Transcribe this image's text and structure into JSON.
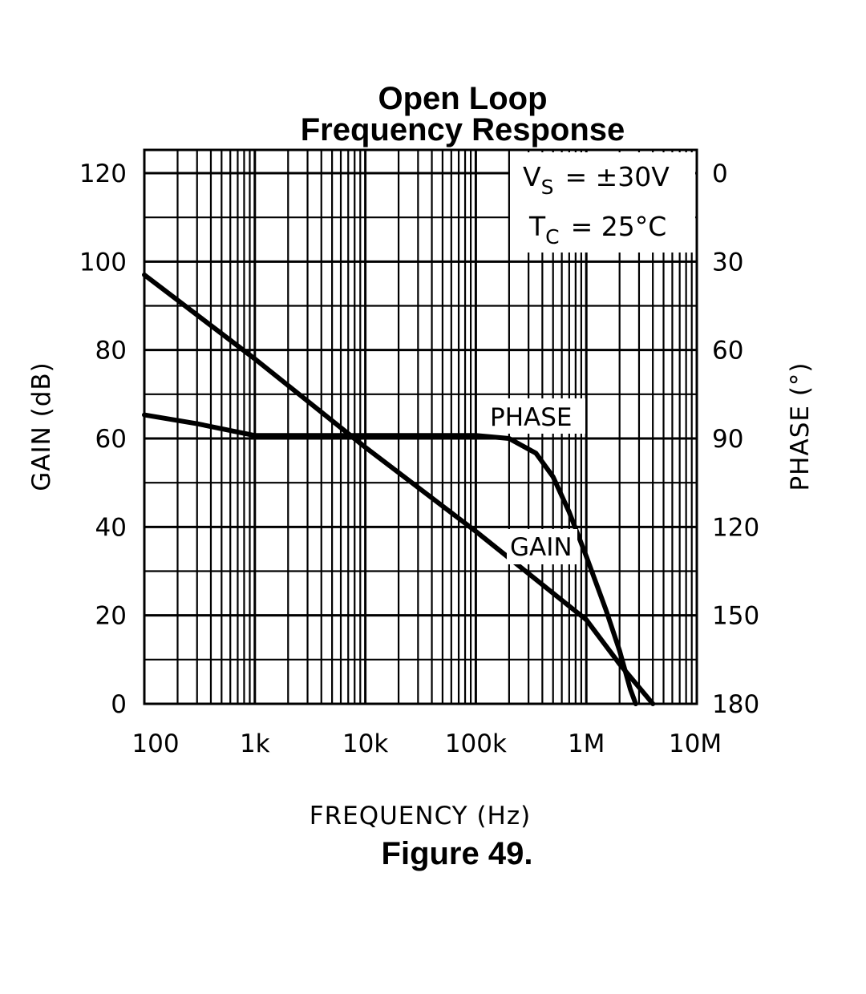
{
  "chart_data": {
    "type": "line",
    "title_lines": [
      "Open Loop",
      "Frequency Response"
    ],
    "xlabel": "FREQUENCY (Hz)",
    "ylabel": "GAIN (dB)",
    "y2label": "PHASE (°)",
    "x_scale": "log",
    "xlim": [
      100,
      10000000
    ],
    "ylim": [
      0,
      120
    ],
    "y2lim": [
      0,
      180
    ],
    "y2_inverted": true,
    "x_ticks": [
      {
        "value": 100,
        "label": "100"
      },
      {
        "value": 1000,
        "label": "1k"
      },
      {
        "value": 10000,
        "label": "10k"
      },
      {
        "value": 100000,
        "label": "100k"
      },
      {
        "value": 1000000,
        "label": "1M"
      },
      {
        "value": 10000000,
        "label": "10M"
      }
    ],
    "y_ticks": [
      {
        "value": 0,
        "label": "0"
      },
      {
        "value": 20,
        "label": "20"
      },
      {
        "value": 40,
        "label": "40"
      },
      {
        "value": 60,
        "label": "60"
      },
      {
        "value": 80,
        "label": "80"
      },
      {
        "value": 100,
        "label": "100"
      },
      {
        "value": 120,
        "label": "120"
      }
    ],
    "y2_ticks": [
      {
        "value": 0,
        "label": "0"
      },
      {
        "value": 30,
        "label": "30"
      },
      {
        "value": 60,
        "label": "60"
      },
      {
        "value": 90,
        "label": "90"
      },
      {
        "value": 120,
        "label": "120"
      },
      {
        "value": 150,
        "label": "150"
      },
      {
        "value": 180,
        "label": "180"
      }
    ],
    "grid": true,
    "conditions": [
      {
        "symbol": "V",
        "sub": "S",
        "value": "= ±30V"
      },
      {
        "symbol": "T",
        "sub": "C",
        "value": "= 25°C"
      }
    ],
    "series": [
      {
        "name": "GAIN",
        "axis": "left",
        "x": [
          100,
          1000,
          10000,
          100000,
          1000000,
          2000000,
          4000000
        ],
        "y": [
          97,
          78,
          58,
          39,
          19,
          9,
          0
        ]
      },
      {
        "name": "PHASE",
        "axis": "right",
        "x": [
          100,
          300,
          1000,
          3000,
          10000,
          30000,
          100000,
          200000,
          350000,
          500000,
          700000,
          1000000,
          1500000,
          2000000,
          2500000,
          2800000
        ],
        "y": [
          82,
          85,
          89,
          89,
          89,
          89,
          89,
          90,
          95,
          103,
          115,
          130,
          148,
          162,
          175,
          180
        ]
      }
    ]
  },
  "caption": "Figure 49."
}
